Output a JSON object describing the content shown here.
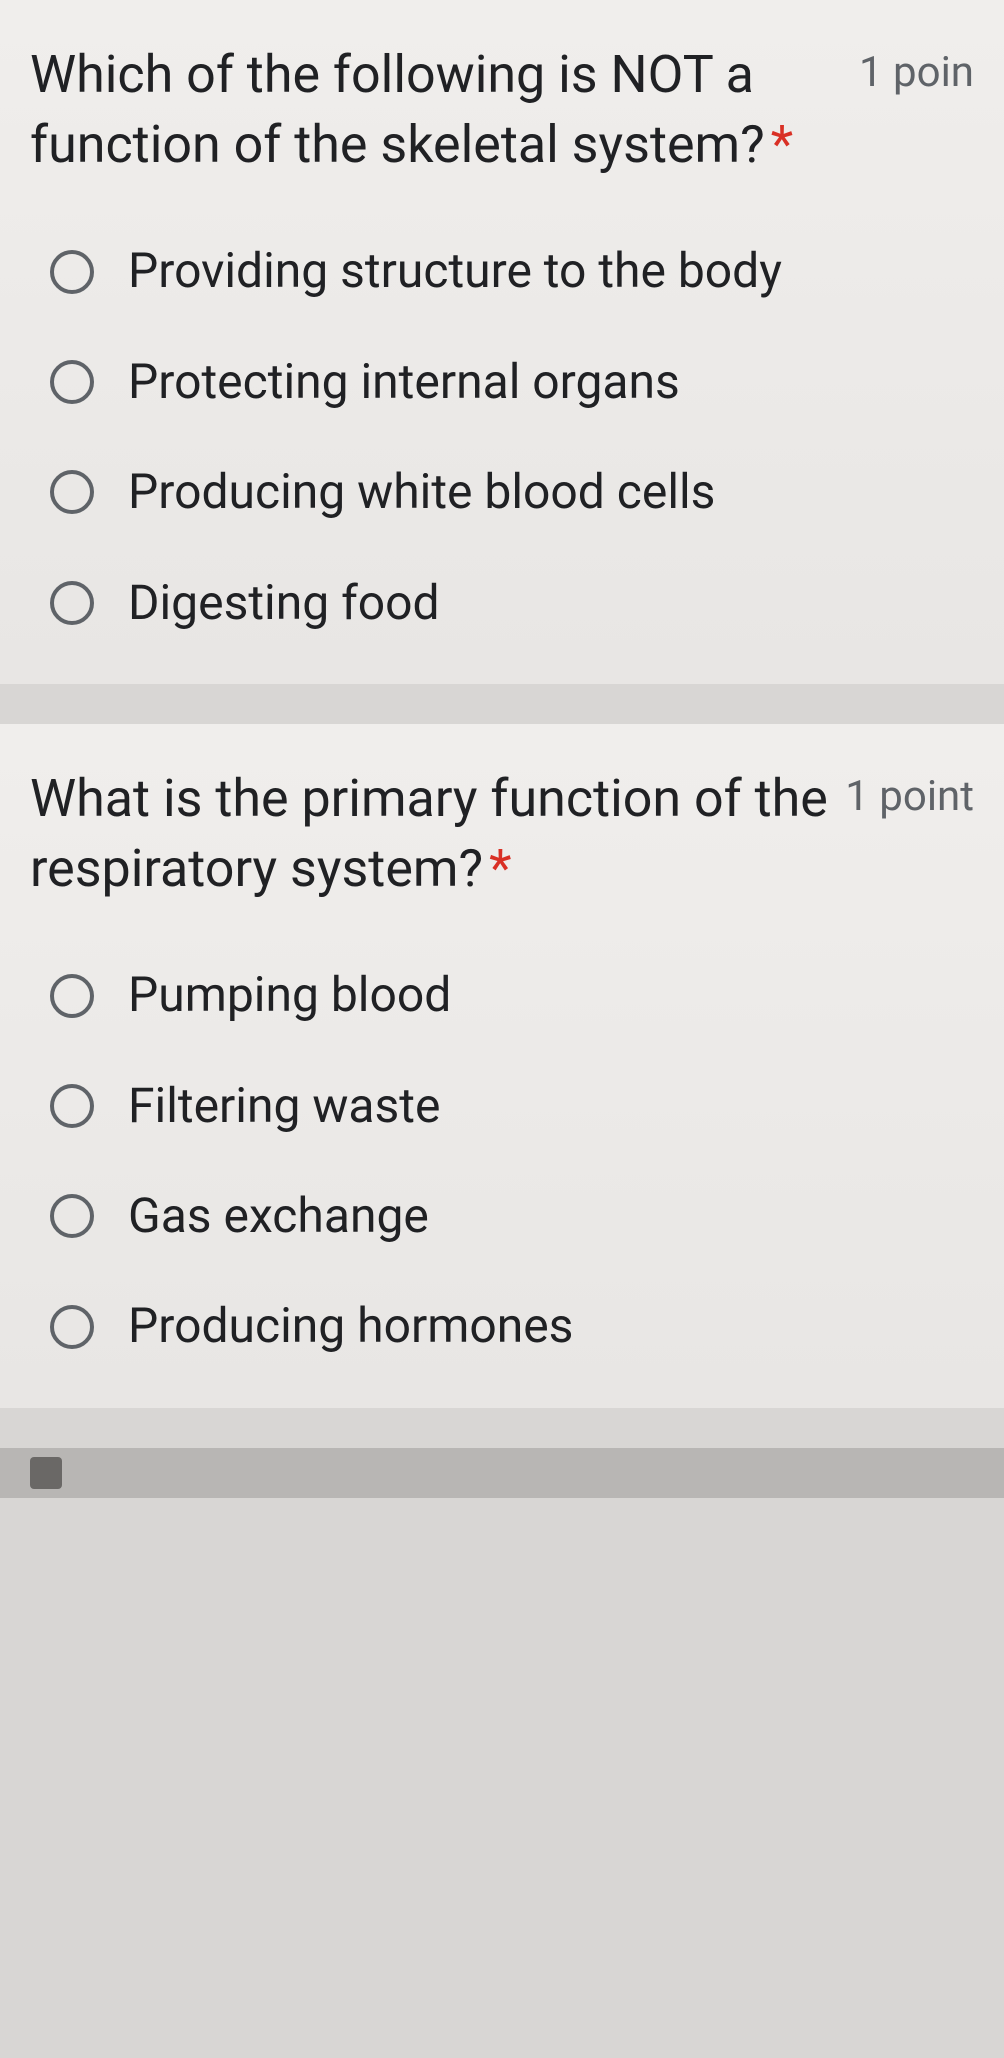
{
  "colors": {
    "background": "#d8d6d4",
    "card_bg_top": "#f0eeec",
    "card_bg_bottom": "#e8e6e4",
    "text_primary": "#202124",
    "text_secondary": "#5f6368",
    "required_asterisk": "#d93025",
    "radio_border": "#5f6368"
  },
  "typography": {
    "question_fontsize": 52,
    "option_fontsize": 48,
    "points_fontsize": 42
  },
  "questions": [
    {
      "text": "Which of the following is NOT a function of the skeletal system?",
      "required": true,
      "points_label": "1 poin",
      "options": [
        "Providing structure to the body",
        "Protecting internal organs",
        "Producing white blood cells",
        "Digesting food"
      ]
    },
    {
      "text": "What is the primary function of the respiratory system?",
      "required": true,
      "points_label": "1 point",
      "options": [
        "Pumping blood",
        "Filtering waste",
        "Gas exchange",
        "Producing hormones"
      ]
    }
  ]
}
